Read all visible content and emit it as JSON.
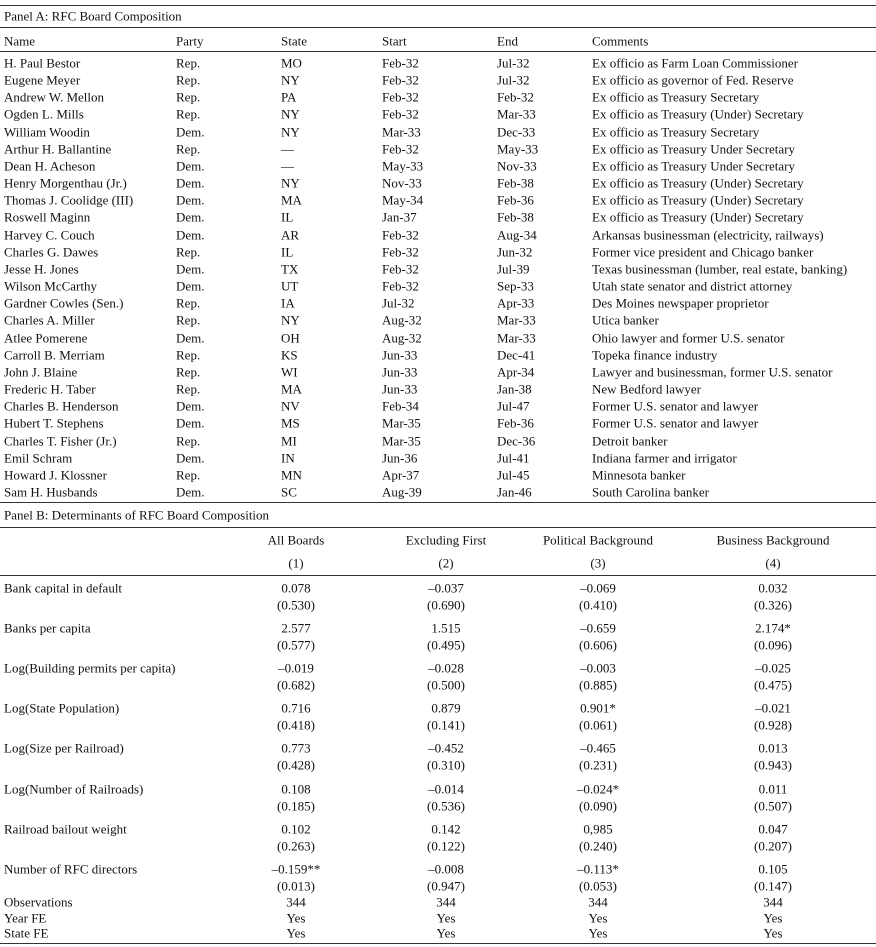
{
  "panel_a": {
    "title": "Panel A: RFC Board Composition",
    "columns": [
      "Name",
      "Party",
      "State",
      "Start",
      "End",
      "Comments"
    ],
    "rows": [
      [
        "H. Paul Bestor",
        "Rep.",
        "MO",
        "Feb-32",
        "Jul-32",
        "Ex officio as Farm Loan Commissioner"
      ],
      [
        "Eugene Meyer",
        "Rep.",
        "NY",
        "Feb-32",
        "Jul-32",
        "Ex officio as governor of Fed. Reserve"
      ],
      [
        "Andrew W. Mellon",
        "Rep.",
        "PA",
        "Feb-32",
        "Feb-32",
        "Ex officio as Treasury Secretary"
      ],
      [
        "Ogden L. Mills",
        "Rep.",
        "NY",
        "Feb-32",
        "Mar-33",
        "Ex officio as Treasury (Under) Secretary"
      ],
      [
        "William Woodin",
        "Dem.",
        "NY",
        "Mar-33",
        "Dec-33",
        "Ex officio as Treasury Secretary"
      ],
      [
        "Arthur H. Ballantine",
        "Rep.",
        "—",
        "Feb-32",
        "May-33",
        "Ex officio as Treasury Under Secretary"
      ],
      [
        "Dean H. Acheson",
        "Dem.",
        "—",
        "May-33",
        "Nov-33",
        "Ex officio as Treasury Under Secretary"
      ],
      [
        "Henry Morgenthau (Jr.)",
        "Dem.",
        "NY",
        "Nov-33",
        "Feb-38",
        "Ex officio as Treasury (Under) Secretary"
      ],
      [
        "Thomas J. Coolidge (III)",
        "Dem.",
        "MA",
        "May-34",
        "Feb-36",
        "Ex officio as Treasury (Under) Secretary"
      ],
      [
        "Roswell Maginn",
        "Dem.",
        "IL",
        "Jan-37",
        "Feb-38",
        "Ex officio as Treasury (Under) Secretary"
      ],
      [
        "Harvey C. Couch",
        "Dem.",
        "AR",
        "Feb-32",
        "Aug-34",
        "Arkansas businessman (electricity, railways)"
      ],
      [
        "Charles G. Dawes",
        "Rep.",
        "IL",
        "Feb-32",
        "Jun-32",
        "Former vice president and Chicago banker"
      ],
      [
        "Jesse H. Jones",
        "Dem.",
        "TX",
        "Feb-32",
        "Jul-39",
        "Texas businessman (lumber, real estate, banking)"
      ],
      [
        "Wilson McCarthy",
        "Dem.",
        "UT",
        "Feb-32",
        "Sep-33",
        "Utah state senator and district attorney"
      ],
      [
        "Gardner Cowles (Sen.)",
        "Rep.",
        "IA",
        "Jul-32",
        "Apr-33",
        "Des Moines newspaper proprietor"
      ],
      [
        "Charles A. Miller",
        "Rep.",
        "NY",
        "Aug-32",
        "Mar-33",
        "Utica banker"
      ],
      [
        "Atlee Pomerene",
        "Dem.",
        "OH",
        "Aug-32",
        "Mar-33",
        "Ohio lawyer and former U.S. senator"
      ],
      [
        "Carroll B. Merriam",
        "Rep.",
        "KS",
        "Jun-33",
        "Dec-41",
        "Topeka finance industry"
      ],
      [
        "John J. Blaine",
        "Rep.",
        "WI",
        "Jun-33",
        "Apr-34",
        "Lawyer and businessman, former U.S. senator"
      ],
      [
        "Frederic H. Taber",
        "Rep.",
        "MA",
        "Jun-33",
        "Jan-38",
        "New Bedford lawyer"
      ],
      [
        "Charles B. Henderson",
        "Dem.",
        "NV",
        "Feb-34",
        "Jul-47",
        "Former U.S. senator and lawyer"
      ],
      [
        "Hubert T. Stephens",
        "Dem.",
        "MS",
        "Mar-35",
        "Feb-36",
        "Former U.S. senator and lawyer"
      ],
      [
        "Charles T. Fisher (Jr.)",
        "Rep.",
        "MI",
        "Mar-35",
        "Dec-36",
        "Detroit banker"
      ],
      [
        "Emil Schram",
        "Dem.",
        "IN",
        "Jun-36",
        "Jul-41",
        "Indiana farmer and irrigator"
      ],
      [
        "Howard J. Klossner",
        "Rep.",
        "MN",
        "Apr-37",
        "Jul-45",
        "Minnesota banker"
      ],
      [
        "Sam H. Husbands",
        "Dem.",
        "SC",
        "Aug-39",
        "Jan-46",
        "South Carolina banker"
      ]
    ]
  },
  "panel_b": {
    "title": "Panel B: Determinants of RFC Board Composition",
    "columns": [
      "All Boards",
      "Excluding First",
      "Political Background",
      "Business Background"
    ],
    "column_numbers": [
      "(1)",
      "(2)",
      "(3)",
      "(4)"
    ],
    "rows": [
      {
        "label": "Bank capital in default",
        "values": [
          "0.078",
          "–0.037",
          "–0.069",
          "0.032"
        ],
        "se": [
          "(0.530)",
          "(0.690)",
          "(0.410)",
          "(0.326)"
        ]
      },
      {
        "label": "Banks per capita",
        "values": [
          "2.577",
          "1.515",
          "–0.659",
          "2.174*"
        ],
        "se": [
          "(0.577)",
          "(0.495)",
          "(0.606)",
          "(0.096)"
        ]
      },
      {
        "label": "Log(Building permits per capita)",
        "values": [
          "–0.019",
          "–0.028",
          "–0.003",
          "–0.025"
        ],
        "se": [
          "(0.682)",
          "(0.500)",
          "(0.885)",
          "(0.475)"
        ]
      },
      {
        "label": "Log(State Population)",
        "values": [
          "0.716",
          "0.879",
          "0.901*",
          "–0.021"
        ],
        "se": [
          "(0.418)",
          "(0.141)",
          "(0.061)",
          "(0.928)"
        ]
      },
      {
        "label": "Log(Size per Railroad)",
        "values": [
          "0.773",
          "–0.452",
          "–0.465",
          "0.013"
        ],
        "se": [
          "(0.428)",
          "(0.310)",
          "(0.231)",
          "(0.943)"
        ]
      },
      {
        "label": "Log(Number of Railroads)",
        "values": [
          "0.108",
          "–0.014",
          "–0.024*",
          "0.011"
        ],
        "se": [
          "(0.185)",
          "(0.536)",
          "(0.090)",
          "(0.507)"
        ]
      },
      {
        "label": "Railroad bailout weight",
        "values": [
          "0.102",
          "0.142",
          "0,985",
          "0.047"
        ],
        "se": [
          "(0.263)",
          "(0.122)",
          "(0.240)",
          "(0.207)"
        ]
      },
      {
        "label": "Number of RFC directors",
        "values": [
          "–0.159**",
          "–0.008",
          "–0.113*",
          "0.105"
        ],
        "se": [
          "(0.013)",
          "(0.947)",
          "(0.053)",
          "(0.147)"
        ]
      }
    ],
    "footer_rows": [
      {
        "label": "Observations",
        "values": [
          "344",
          "344",
          "344",
          "344"
        ]
      },
      {
        "label": "Year FE",
        "values": [
          "Yes",
          "Yes",
          "Yes",
          "Yes"
        ]
      },
      {
        "label": "State FE",
        "values": [
          "Yes",
          "Yes",
          "Yes",
          "Yes"
        ]
      }
    ]
  }
}
